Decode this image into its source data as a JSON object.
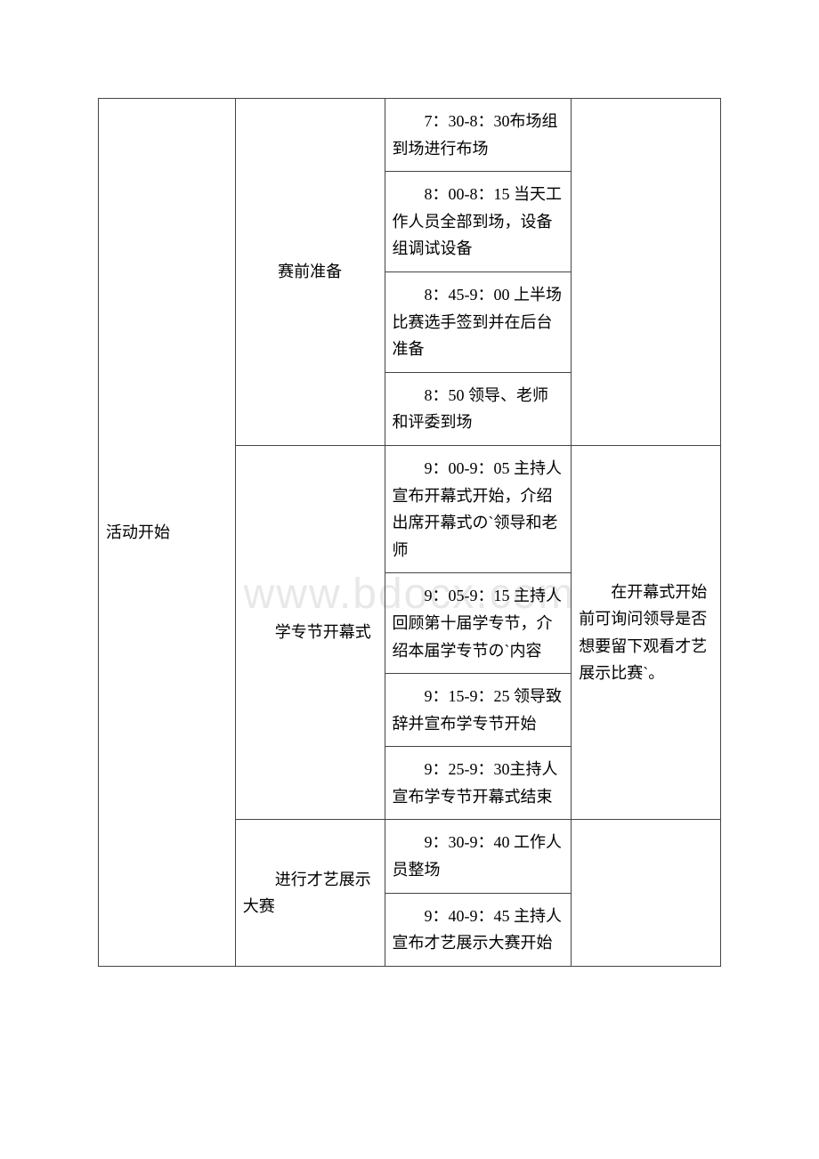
{
  "watermark": "www.bdocx.com",
  "table": {
    "col1_main": "活动开始",
    "sections": [
      {
        "phase": "赛前准备",
        "rows": [
          {
            "detail": "　　7：30-8：30布场组到场进行布场"
          },
          {
            "detail": "　　8：00-8：15 当天工作人员全部到场，设备组调试设备"
          },
          {
            "detail": "　　8：45-9：00 上半场比赛选手签到并在后台准备"
          },
          {
            "detail": "　　8：50 领导、老师和评委到场"
          }
        ],
        "note": ""
      },
      {
        "phase": "　　学专节开幕式",
        "rows": [
          {
            "detail": "　　9：00-9：05 主持人宣布开幕式开始，介绍出席开幕式の`领导和老师"
          },
          {
            "detail": "　　9：05-9：15 主持人回顾第十届学专节，介绍本届学专节の`内容"
          },
          {
            "detail": "　　9：15-9：25 领导致辞并宣布学专节开始"
          },
          {
            "detail": "　　9：25-9：30主持人宣布学专节开幕式结束"
          }
        ],
        "note": "　　在开幕式开始前可询问领导是否想要留下观看才艺展示比赛`。"
      },
      {
        "phase": "　　进行才艺展示大赛",
        "rows": [
          {
            "detail": "　　9：30-9：40 工作人员整场"
          },
          {
            "detail": "　　9：40-9：45 主持人宣布才艺展示大赛开始"
          }
        ],
        "note": ""
      }
    ]
  }
}
